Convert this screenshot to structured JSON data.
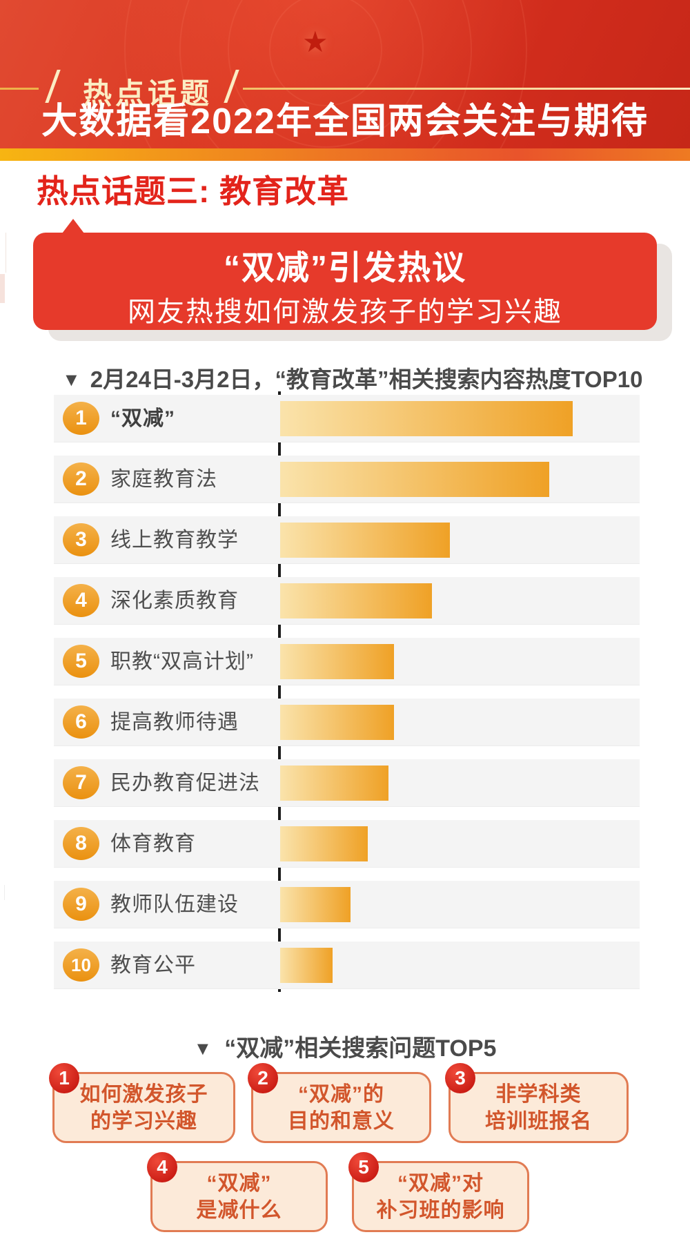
{
  "header": {
    "badge": "热点话题",
    "title": "大数据看2022年全国两会关注与期待"
  },
  "section_title": "热点话题三: 教育改革",
  "banner": {
    "title": "“双减”引发热议",
    "subtitle": "网友热搜如何激发孩子的学习兴趣"
  },
  "chart_header": {
    "marker": "▼",
    "text": "2月24日-3月2日，“教育改革”相关搜索内容热度TOP10"
  },
  "chart_data": {
    "type": "bar",
    "orientation": "horizontal",
    "title": "2月24日-3月2日，“教育改革”相关搜索内容热度TOP10",
    "categories": [
      "“双减”",
      "家庭教育法",
      "线上教育教学",
      "深化素质教育",
      "职教“双高计划”",
      "提高教师待遇",
      "民办教育促进法",
      "体育教育",
      "教师队伍建设",
      "教育公平"
    ],
    "ranks": [
      1,
      2,
      3,
      4,
      5,
      6,
      7,
      8,
      9,
      10
    ],
    "values": [
      100,
      92,
      58,
      52,
      39,
      39,
      37,
      30,
      24,
      18
    ],
    "value_note": "relative search heat as % of top item; no numeric labels shown in image",
    "xlim": [
      0,
      100
    ],
    "grid": false,
    "legend": false,
    "bar_gradient": [
      "#fae3ab",
      "#efa126"
    ],
    "axis_color": "#1c1c1c"
  },
  "top5_header": {
    "marker": "▼",
    "text": "“双减”相关搜索问题TOP5"
  },
  "top5_items": [
    {
      "rank": "1",
      "line1": "如何激发孩子",
      "line2": "的学习兴趣"
    },
    {
      "rank": "2",
      "line1": "“双减”的",
      "line2": "目的和意义"
    },
    {
      "rank": "3",
      "line1": "非学科类",
      "line2": "培训班报名"
    },
    {
      "rank": "4",
      "line1": "“双减”",
      "line2": "是减什么"
    },
    {
      "rank": "5",
      "line1": "“双减”对",
      "line2": "补习班的影响"
    }
  ],
  "icons": {
    "star": "★",
    "down_triangle": "▼"
  },
  "colors": {
    "hero_red": "#d63120",
    "accent_strip_start": "#f7b512",
    "accent_strip_end": "#e9542b",
    "banner_red": "#e63a2b",
    "section_red": "#e3241b",
    "row_bg": "#f4f4f4",
    "bar_start": "#fae3ab",
    "bar_end": "#efa126",
    "rank_badge_orange": "#eda32b",
    "heading_gray": "#4a4a4a",
    "label_gray": "#4f4f4f",
    "top5_box_bg": "#fcead9",
    "top5_box_border": "#e17b53",
    "top5_text": "#d2562c",
    "top5_badge_red": "#d7281f"
  }
}
